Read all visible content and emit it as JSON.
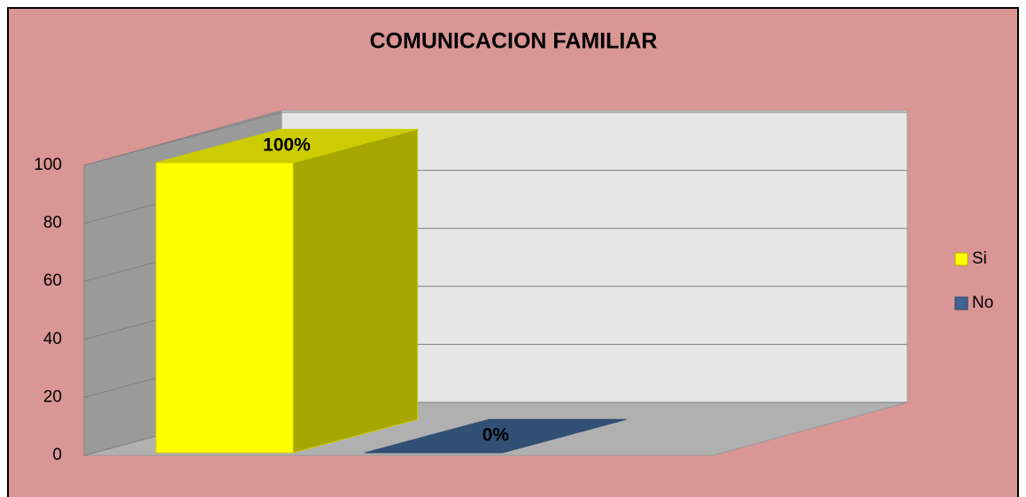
{
  "chart_data": {
    "type": "bar",
    "title": "COMUNICACION FAMILIAR",
    "categories": [
      null
    ],
    "series": [
      {
        "name": "Si",
        "color": "#ffff00",
        "values": [
          100
        ],
        "value_labels": [
          "100%"
        ]
      },
      {
        "name": "No",
        "color": "#3f6392",
        "values": [
          0
        ],
        "value_labels": [
          "0%"
        ]
      }
    ],
    "ylim": [
      0,
      100
    ],
    "yticks": [
      0,
      20,
      40,
      60,
      80,
      100
    ],
    "grid": true,
    "legend": "right"
  }
}
